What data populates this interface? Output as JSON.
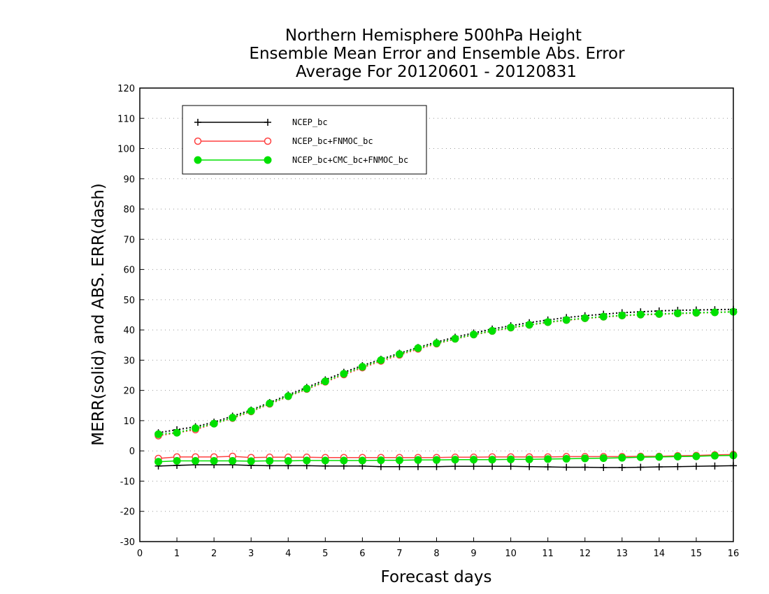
{
  "chart_data": {
    "type": "line",
    "title": [
      "Northern Hemisphere 500hPa Height",
      "Ensemble Mean Error and Ensemble Abs. Error",
      "Average For 20120601 - 20120831"
    ],
    "xlabel": "Forecast days",
    "ylabel": "MERR(solid) and ABS. ERR(dash)",
    "xlim": [
      0,
      16
    ],
    "ylim": [
      -30,
      120
    ],
    "xticks": [
      0,
      1,
      2,
      3,
      4,
      5,
      6,
      7,
      8,
      9,
      10,
      11,
      12,
      13,
      14,
      15,
      16
    ],
    "yticks": [
      -30,
      -20,
      -10,
      0,
      10,
      20,
      30,
      40,
      50,
      60,
      70,
      80,
      90,
      100,
      110,
      120
    ],
    "grid": "horizontal dotted",
    "legend_position": "top-left",
    "x": [
      0.5,
      1,
      1.5,
      2,
      2.5,
      3,
      3.5,
      4,
      4.5,
      5,
      5.5,
      6,
      6.5,
      7,
      7.5,
      8,
      8.5,
      9,
      9.5,
      10,
      10.5,
      11,
      11.5,
      12,
      12.5,
      13,
      13.5,
      14,
      14.5,
      15,
      15.5,
      16
    ],
    "series": [
      {
        "name": "NCEP_bc",
        "color": "#000000",
        "marker": "plus",
        "merr": [
          -5,
          -4.8,
          -4.6,
          -4.6,
          -4.6,
          -4.8,
          -4.9,
          -4.9,
          -4.9,
          -5,
          -5,
          -5,
          -5.2,
          -5.2,
          -5.2,
          -5.2,
          -5.1,
          -5.1,
          -5.1,
          -5.1,
          -5.2,
          -5.3,
          -5.4,
          -5.4,
          -5.5,
          -5.5,
          -5.4,
          -5.3,
          -5.2,
          -5.1,
          -5,
          -4.9
        ],
        "abs_err": [
          6,
          7,
          8,
          9.5,
          11.5,
          13.5,
          16,
          18.5,
          21,
          23.5,
          26,
          28.2,
          30.3,
          32.3,
          34.2,
          36,
          37.6,
          39,
          40.3,
          41.4,
          42.4,
          43.3,
          44.1,
          44.7,
          45.2,
          45.7,
          46,
          46.3,
          46.5,
          46.6,
          46.7,
          46.8
        ]
      },
      {
        "name": "NCEP_bc+FNMOC_bc",
        "color": "#ff4040",
        "marker": "open-circle",
        "merr": [
          -2.5,
          -2,
          -2,
          -2,
          -1.8,
          -2.2,
          -2.1,
          -2.1,
          -2.1,
          -2.2,
          -2.2,
          -2.2,
          -2.2,
          -2.2,
          -2.2,
          -2.2,
          -2.1,
          -2.1,
          -2,
          -2,
          -2,
          -2,
          -1.9,
          -1.9,
          -1.9,
          -1.9,
          -1.8,
          -1.8,
          -1.6,
          -1.5,
          -1.3,
          -1.2
        ],
        "abs_err": [
          5,
          6,
          7,
          9,
          10.8,
          13,
          15.5,
          18,
          20.4,
          22.8,
          25.2,
          27.5,
          29.7,
          31.7,
          33.7,
          35.4,
          37,
          38.4,
          39.6,
          40.7,
          41.6,
          42.5,
          43.2,
          43.8,
          44.3,
          44.7,
          45,
          45.2,
          45.4,
          45.6,
          45.8,
          46
        ]
      },
      {
        "name": "NCEP_bc+CMC_bc+FNMOC_bc",
        "color": "#00e000",
        "marker": "filled-circle",
        "merr": [
          -3.6,
          -3.3,
          -3.3,
          -3.3,
          -3.3,
          -3.4,
          -3.3,
          -3.3,
          -3.2,
          -3.2,
          -3.2,
          -3.2,
          -3.1,
          -3.1,
          -3,
          -3,
          -2.9,
          -2.9,
          -2.9,
          -2.8,
          -2.8,
          -2.7,
          -2.6,
          -2.5,
          -2.4,
          -2.3,
          -2.1,
          -2,
          -1.9,
          -1.8,
          -1.6,
          -1.5
        ],
        "abs_err": [
          5.5,
          6,
          7.5,
          9,
          11,
          13.2,
          15.7,
          18.1,
          20.6,
          23,
          25.5,
          27.8,
          30,
          32,
          34,
          35.6,
          37.1,
          38.5,
          39.7,
          40.8,
          41.7,
          42.6,
          43.3,
          43.9,
          44.4,
          44.8,
          45.1,
          45.3,
          45.5,
          45.7,
          45.8,
          46
        ]
      }
    ]
  }
}
